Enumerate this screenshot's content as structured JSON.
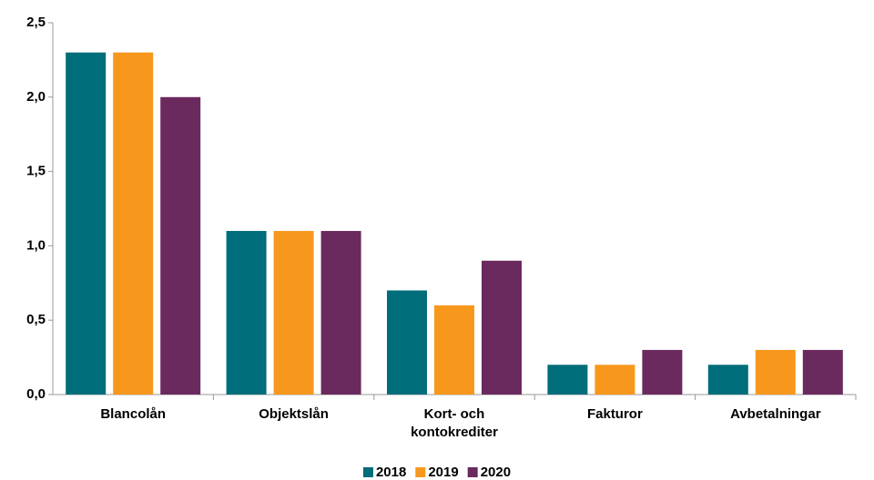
{
  "chart_data": {
    "type": "bar",
    "categories": [
      "Blancolån",
      "Objektslån",
      "Kort- och kontokrediter",
      "Fakturor",
      "Avbetalningar"
    ],
    "series": [
      {
        "name": "2018",
        "color": "#006d7a",
        "values": [
          2.3,
          1.1,
          0.7,
          0.2,
          0.2
        ]
      },
      {
        "name": "2019",
        "color": "#f7981d",
        "values": [
          2.3,
          1.1,
          0.6,
          0.2,
          0.3
        ]
      },
      {
        "name": "2020",
        "color": "#6b2a5e",
        "values": [
          2.0,
          1.1,
          0.9,
          0.3,
          0.3
        ]
      }
    ],
    "ylim": [
      0,
      2.5
    ],
    "yticks": [
      {
        "value": 0,
        "label": "0,0"
      },
      {
        "value": 0.5,
        "label": "0,5"
      },
      {
        "value": 1,
        "label": "1,0"
      },
      {
        "value": 1.5,
        "label": "1,5"
      },
      {
        "value": 2,
        "label": "2,0"
      },
      {
        "value": 2.5,
        "label": "2,5"
      }
    ],
    "legend": "bottom"
  }
}
